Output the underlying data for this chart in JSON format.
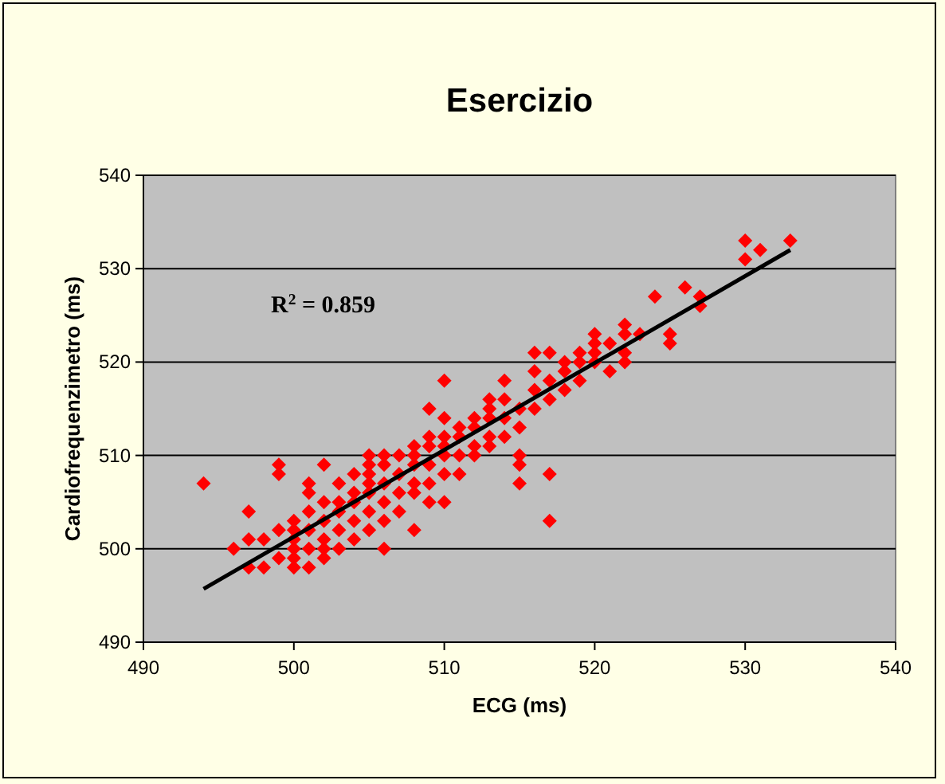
{
  "chart_data": {
    "type": "scatter",
    "title": "Esercizio",
    "xlabel": "ECG (ms)",
    "ylabel": "Cardiofrequenzimetro (ms)",
    "xlim": [
      490,
      540
    ],
    "xticks": [
      490,
      500,
      510,
      520,
      530,
      540
    ],
    "ylim": [
      490,
      540
    ],
    "yticks": [
      490,
      500,
      510,
      520,
      530,
      540
    ],
    "grid": "y",
    "annotations": [
      "R$^{2}$ = 0.859"
    ],
    "series": [
      {
        "color": "#ff0000",
        "marker": "diamond",
        "x": [
          494,
          496,
          497,
          497,
          497,
          498,
          498,
          499,
          499,
          499,
          499,
          500,
          500,
          500,
          500,
          500,
          500,
          501,
          501,
          501,
          501,
          501,
          501,
          502,
          502,
          502,
          502,
          502,
          502,
          503,
          503,
          503,
          503,
          503,
          504,
          504,
          504,
          504,
          504,
          505,
          505,
          505,
          505,
          505,
          505,
          505,
          506,
          506,
          506,
          506,
          506,
          506,
          507,
          507,
          507,
          507,
          508,
          508,
          508,
          508,
          508,
          508,
          509,
          509,
          509,
          509,
          509,
          509,
          510,
          510,
          510,
          510,
          510,
          510,
          510,
          511,
          511,
          511,
          511,
          512,
          512,
          512,
          512,
          513,
          513,
          513,
          513,
          513,
          514,
          514,
          514,
          514,
          515,
          515,
          515,
          515,
          515,
          516,
          516,
          516,
          516,
          517,
          517,
          517,
          517,
          517,
          518,
          518,
          518,
          519,
          519,
          519,
          520,
          520,
          520,
          520,
          521,
          521,
          522,
          522,
          522,
          522,
          523,
          524,
          525,
          525,
          526,
          527,
          527,
          530,
          530,
          531,
          533
        ],
        "values": [
          507,
          500,
          504,
          501,
          498,
          498,
          501,
          509,
          508,
          502,
          499,
          498,
          499,
          500,
          501,
          503,
          502,
          500,
          502,
          504,
          506,
          507,
          498,
          499,
          501,
          503,
          505,
          509,
          500,
          500,
          502,
          504,
          505,
          507,
          501,
          503,
          505,
          506,
          508,
          502,
          504,
          506,
          507,
          508,
          509,
          510,
          500,
          503,
          505,
          507,
          509,
          510,
          504,
          506,
          508,
          510,
          502,
          506,
          507,
          509,
          510,
          511,
          505,
          507,
          509,
          511,
          512,
          515,
          505,
          508,
          510,
          511,
          512,
          514,
          518,
          508,
          510,
          512,
          513,
          510,
          511,
          513,
          514,
          511,
          512,
          514,
          515,
          516,
          512,
          514,
          516,
          518,
          507,
          509,
          510,
          513,
          515,
          515,
          517,
          519,
          521,
          503,
          508,
          516,
          518,
          521,
          517,
          519,
          520,
          518,
          520,
          521,
          520,
          521,
          522,
          523,
          519,
          522,
          520,
          521,
          523,
          524,
          523,
          527,
          522,
          523,
          528,
          526,
          527,
          531,
          533,
          532,
          533
        ]
      },
      {
        "type": "line",
        "color": "#000000",
        "x": [
          494,
          533
        ],
        "values": [
          495.7,
          532
        ],
        "marker": "none"
      }
    ]
  }
}
